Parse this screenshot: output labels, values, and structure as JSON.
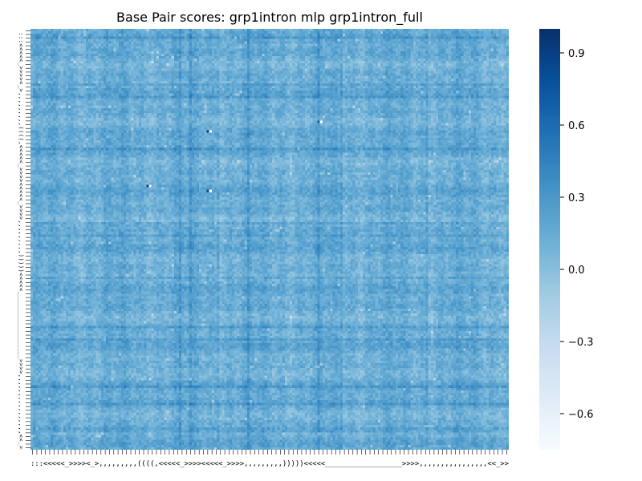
{
  "chart_data": {
    "type": "heatmap",
    "title": "Base Pair scores: grp1intron mlp grp1intron_full",
    "xlabel": "",
    "ylabel": "",
    "x_tick_labels_note": "Dot-bracket structure symbols along both axes",
    "x_dotbracket": ":::<<<<<_>>>><_>,,,,,,,,,((((,<<<<<_>>>><<<<<_>>>>,,,,,,,,,)))))<<<<<__________________>>>>,,,,,,,,,,,,,,,,<<_>>",
    "y_dotbracket": ":::<<<<<_>>>><_>,,,,,,,,,((((,<<<<<_>>>><<<<<_>>>>,,,,,,,,,)))))<<<<<__________________>>>>,,,,,,,,,,,,,,,,<<_>>",
    "colorbar": {
      "min": -0.75,
      "max": 1.0,
      "ticks": [
        -0.6,
        -0.3,
        0.0,
        0.3,
        0.6,
        0.9
      ],
      "tick_labels": [
        "−0.6",
        "−0.3",
        "0.0",
        "0.3",
        "0.6",
        "0.9"
      ],
      "colormap": "Blues"
    },
    "grid": false,
    "dominant_value_range": [
      0.0,
      0.3
    ],
    "highlights": [
      {
        "row_frac": 0.24,
        "col_frac": 0.37,
        "value": 0.95
      },
      {
        "row_frac": 0.37,
        "col_frac": 0.24,
        "value": 0.95
      },
      {
        "row_frac": 0.38,
        "col_frac": 0.37,
        "value": 0.85
      },
      {
        "row_frac": 0.22,
        "col_frac": 0.6,
        "value": 0.7
      }
    ]
  },
  "colors": {
    "low": "#f7fbff",
    "high": "#08306b",
    "background": "#ffffff"
  }
}
